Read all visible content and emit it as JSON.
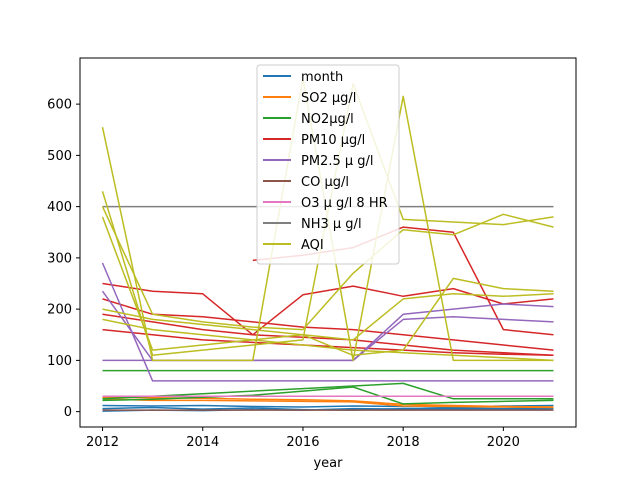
{
  "chart_data": {
    "type": "line",
    "title": "",
    "xlabel": "year",
    "ylabel": "",
    "xlim": [
      2011.55,
      2021.45
    ],
    "ylim": [
      -30,
      690
    ],
    "xticks": [
      2012,
      2014,
      2016,
      2018,
      2020
    ],
    "yticks": [
      0,
      100,
      200,
      300,
      400,
      500,
      600
    ],
    "grid": false,
    "legend_position": "upper center",
    "series": [
      {
        "name": "month",
        "color": "#1f77b4",
        "segments": [
          {
            "x": [
              2012,
              2013,
              2014,
              2015,
              2016,
              2017,
              2018,
              2019,
              2020,
              2021
            ],
            "y": [
              1,
              3,
              2,
              4,
              3,
              6,
              5,
              7,
              6,
              8
            ]
          },
          {
            "x": [
              2012,
              2013,
              2014,
              2015,
              2016,
              2017,
              2018,
              2019,
              2020,
              2021
            ],
            "y": [
              12,
              11,
              12,
              10,
              9,
              11,
              10,
              9,
              11,
              12
            ]
          },
          {
            "x": [
              2012,
              2013,
              2014,
              2015,
              2016,
              2017,
              2018,
              2019,
              2020,
              2021
            ],
            "y": [
              6,
              8,
              5,
              7,
              4,
              3,
              6,
              5,
              4,
              6
            ]
          }
        ]
      },
      {
        "name": "SO2 µg/l",
        "color": "#ff7f0e",
        "segments": [
          {
            "x": [
              2012,
              2013,
              2014,
              2015,
              2016,
              2017,
              2018,
              2019,
              2020,
              2021
            ],
            "y": [
              25,
              22,
              22,
              21,
              20,
              19,
              11,
              10,
              9,
              8
            ]
          },
          {
            "x": [
              2012,
              2013,
              2014,
              2015,
              2016,
              2017,
              2018,
              2019,
              2020,
              2021
            ],
            "y": [
              28,
              27,
              26,
              24,
              23,
              21,
              14,
              12,
              10,
              9
            ]
          }
        ]
      },
      {
        "name": "NO2µg/l",
        "color": "#2ca02c",
        "segments": [
          {
            "x": [
              2012,
              2013,
              2014,
              2015,
              2016,
              2017,
              2018,
              2019,
              2020,
              2021
            ],
            "y": [
              80,
              80,
              80,
              80,
              80,
              80,
              80,
              80,
              80,
              80
            ]
          },
          {
            "x": [
              2012,
              2013,
              2014,
              2015,
              2016,
              2017,
              2018,
              2019,
              2020,
              2021
            ],
            "y": [
              25,
              30,
              35,
              40,
              45,
              50,
              55,
              25,
              25,
              25
            ]
          },
          {
            "x": [
              2012,
              2013,
              2014,
              2015,
              2016,
              2017,
              2018,
              2019,
              2020,
              2021
            ],
            "y": [
              22,
              24,
              28,
              32,
              40,
              48,
              15,
              18,
              20,
              22
            ]
          }
        ]
      },
      {
        "name": "PM10 µg/l",
        "color": "#d62728",
        "segments": [
          {
            "x": [
              2012,
              2013,
              2014,
              2015,
              2016,
              2017,
              2018,
              2019,
              2020,
              2021
            ],
            "y": [
              250,
              235,
              230,
              150,
              228,
              245,
              225,
              240,
              210,
              220
            ]
          },
          {
            "x": [
              2012,
              2013,
              2014,
              2015,
              2016,
              2017,
              2018,
              2019,
              2020,
              2021
            ],
            "y": [
              220,
              190,
              185,
              175,
              165,
              160,
              150,
              140,
              130,
              120
            ]
          },
          {
            "x": [
              2012,
              2013,
              2014,
              2015,
              2016,
              2017,
              2018,
              2019,
              2020,
              2021
            ],
            "y": [
              190,
              175,
              160,
              150,
              145,
              140,
              130,
              120,
              115,
              110
            ]
          },
          {
            "x": [
              2012,
              2013,
              2014,
              2015,
              2016,
              2017,
              2018,
              2019,
              2020,
              2021
            ],
            "y": [
              160,
              150,
              140,
              135,
              130,
              125,
              120,
              115,
              112,
              110
            ]
          },
          {
            "x": [
              2015,
              2016,
              2017,
              2018,
              2019,
              2020,
              2021
            ],
            "y": [
              295,
              305,
              320,
              360,
              350,
              160,
              150
            ]
          }
        ]
      },
      {
        "name": "PM2.5 µ g/l",
        "color": "#9467bd",
        "segments": [
          {
            "x": [
              2012,
              2013,
              2014,
              2015,
              2016,
              2017,
              2018,
              2019,
              2020,
              2021
            ],
            "y": [
              290,
              60,
              60,
              60,
              60,
              60,
              60,
              60,
              60,
              60
            ]
          },
          {
            "x": [
              2012,
              2013,
              2014,
              2015,
              2016,
              2017,
              2018,
              2019,
              2020,
              2021
            ],
            "y": [
              235,
              100,
              100,
              100,
              100,
              100,
              190,
              200,
              210,
              205
            ]
          },
          {
            "x": [
              2012,
              2013,
              2014,
              2015,
              2016,
              2017,
              2018,
              2019,
              2020,
              2021
            ],
            "y": [
              100,
              100,
              100,
              100,
              100,
              100,
              180,
              185,
              180,
              175
            ]
          }
        ]
      },
      {
        "name": "CO µg/l",
        "color": "#8c564b",
        "segments": [
          {
            "x": [
              2012,
              2013,
              2014,
              2015,
              2016,
              2017,
              2018,
              2019,
              2020,
              2021
            ],
            "y": [
              3,
              3,
              3,
              3,
              3,
              3,
              3,
              3,
              3,
              3
            ]
          }
        ]
      },
      {
        "name": "O3 µ g/l 8 HR",
        "color": "#e377c2",
        "segments": [
          {
            "x": [
              2012,
              2013,
              2014,
              2015,
              2016,
              2017,
              2018,
              2019,
              2020,
              2021
            ],
            "y": [
              30,
              30,
              30,
              30,
              30,
              30,
              30,
              30,
              30,
              30
            ]
          }
        ]
      },
      {
        "name": "NH3  µ g/l",
        "color": "#7f7f7f",
        "segments": [
          {
            "x": [
              2012,
              2013,
              2014,
              2015,
              2016,
              2017,
              2018,
              2019,
              2020,
              2021
            ],
            "y": [
              400,
              400,
              400,
              400,
              400,
              400,
              400,
              400,
              400,
              400
            ]
          }
        ]
      },
      {
        "name": "AQI",
        "color": "#bcbd22",
        "segments": [
          {
            "x": [
              2012,
              2013,
              2014,
              2015,
              2016,
              2017,
              2018,
              2019,
              2020,
              2021
            ],
            "y": [
              555,
              100,
              100,
              100,
              650,
              100,
              615,
              100,
              100,
              100
            ]
          },
          {
            "x": [
              2012,
              2013,
              2014,
              2015,
              2016,
              2017,
              2018,
              2019,
              2020,
              2021
            ],
            "y": [
              430,
              110,
              120,
              130,
              140,
              640,
              375,
              370,
              365,
              380
            ]
          },
          {
            "x": [
              2012,
              2013,
              2014,
              2015,
              2016,
              2017,
              2018,
              2019,
              2020,
              2021
            ],
            "y": [
              400,
              190,
              175,
              165,
              160,
              270,
              355,
              345,
              385,
              360
            ]
          },
          {
            "x": [
              2012,
              2013,
              2014,
              2015,
              2016,
              2017,
              2018,
              2019,
              2020,
              2021
            ],
            "y": [
              380,
              120,
              130,
              140,
              150,
              110,
              120,
              260,
              240,
              235
            ]
          },
          {
            "x": [
              2012,
              2013,
              2014,
              2015,
              2016,
              2017,
              2018,
              2019,
              2020,
              2021
            ],
            "y": [
              200,
              180,
              170,
              160,
              150,
              140,
              220,
              230,
              225,
              230
            ]
          },
          {
            "x": [
              2012,
              2013,
              2014,
              2015,
              2016,
              2017,
              2018,
              2019,
              2020,
              2021
            ],
            "y": [
              180,
              160,
              150,
              140,
              130,
              120,
              115,
              110,
              105,
              100
            ]
          }
        ]
      }
    ]
  }
}
